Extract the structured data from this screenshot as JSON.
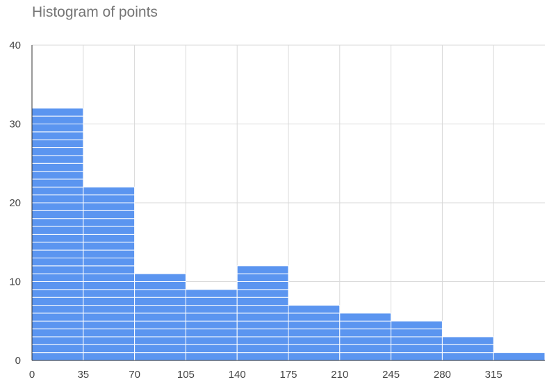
{
  "chart_data": {
    "type": "bar",
    "subtype": "histogram",
    "title": "Histogram of points",
    "xlabel": "",
    "ylabel": "",
    "bin_edges": [
      0,
      35,
      70,
      105,
      140,
      175,
      210,
      245,
      280,
      315,
      350
    ],
    "values": [
      32,
      22,
      11,
      9,
      12,
      7,
      6,
      5,
      3,
      1
    ],
    "x_tick_labels": [
      "0",
      "35",
      "70",
      "105",
      "140",
      "175",
      "210",
      "245",
      "280",
      "315"
    ],
    "y_tick_labels": [
      "0",
      "10",
      "20",
      "30",
      "40"
    ],
    "ylim": [
      0,
      40
    ],
    "xlim": [
      0,
      350
    ],
    "grid": true,
    "legend": "none",
    "bar_color": "#5b95f0",
    "grid_color": "#d9d9d9"
  }
}
